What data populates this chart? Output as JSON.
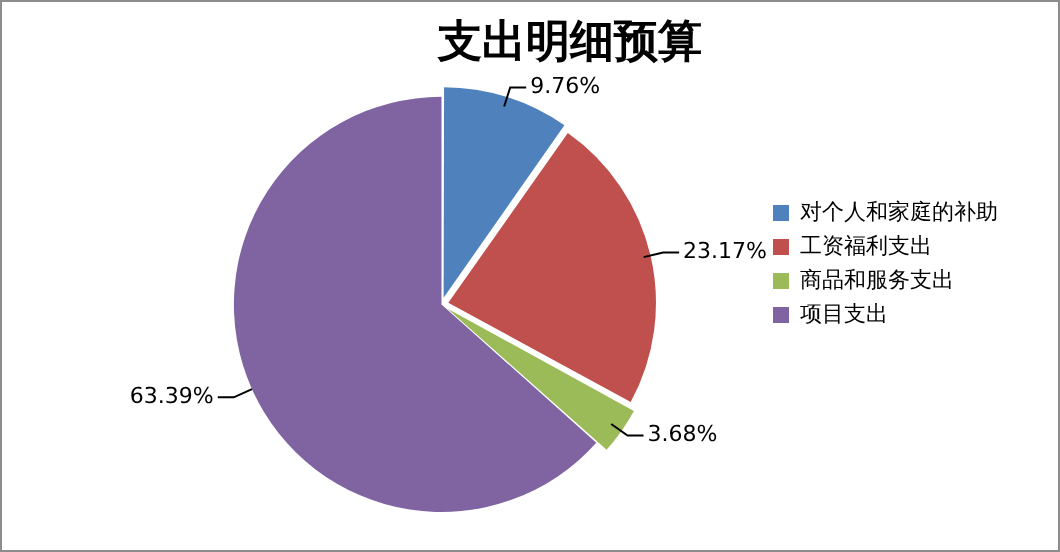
{
  "chart_data": {
    "type": "pie",
    "title": "支出明细预算",
    "categories": [
      "对个人和家庭的补助",
      "工资福利支出",
      "商品和服务支出",
      "项目支出"
    ],
    "values": [
      9.76,
      23.17,
      3.68,
      63.39
    ],
    "colors": [
      "#4f81bd",
      "#c0504d",
      "#9bbb59",
      "#8064a2"
    ],
    "value_labels": [
      "9.76%",
      "23.17%",
      "3.68%",
      "63.39%"
    ],
    "legend": "right"
  }
}
